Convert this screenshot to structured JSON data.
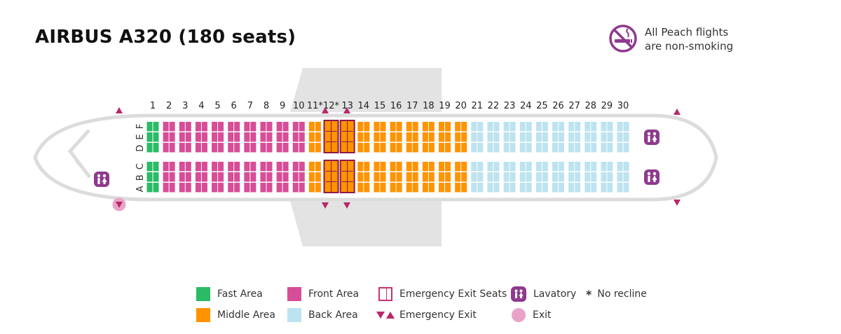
{
  "title": "AIRBUS A320 (180 seats)",
  "no_smoking": {
    "line1": "All Peach flights",
    "line2": "are non-smoking",
    "icon": "no-smoking-icon"
  },
  "colors": {
    "fast": "#2bbb67",
    "front": "#d64d98",
    "middle": "#ff9300",
    "back": "#bde3f0",
    "exit_marker": "#b8286a",
    "exit_circle": "#e9a3c8",
    "lavatory": "#8e3a8e",
    "fuselage": "#dcdcdc",
    "wing": "#e3e3e3",
    "exit_seat_border": "#8b1a4a"
  },
  "rows": [
    "1",
    "2",
    "3",
    "4",
    "5",
    "6",
    "7",
    "8",
    "9",
    "10",
    "11*",
    "12*",
    "13",
    "14",
    "15",
    "16",
    "17",
    "18",
    "19",
    "20",
    "21",
    "22",
    "23",
    "24",
    "25",
    "26",
    "27",
    "28",
    "29",
    "30"
  ],
  "seat_letters_upper": "D E F",
  "seat_letters_lower": "A B C",
  "areas": {
    "fast_rows": [
      1
    ],
    "front_rows": [
      2,
      3,
      4,
      5,
      6,
      7,
      8,
      9,
      10
    ],
    "middle_rows": [
      11,
      12,
      13,
      14,
      15,
      16,
      17,
      18,
      19,
      20
    ],
    "back_rows": [
      21,
      22,
      23,
      24,
      25,
      26,
      27,
      28,
      29,
      30
    ]
  },
  "emergency_exit_rows": [
    12,
    13
  ],
  "no_recline_rows": [
    11,
    12
  ],
  "legend": {
    "fast": "Fast Area",
    "front": "Front Area",
    "exit_seats": "Emergency Exit Seats",
    "lavatory": "Lavatory",
    "no_recline": "No recline",
    "no_recline_symbol": "*",
    "middle": "Middle Area",
    "back": "Back Area",
    "emergency_exit": "Emergency Exit",
    "exit": "Exit"
  }
}
